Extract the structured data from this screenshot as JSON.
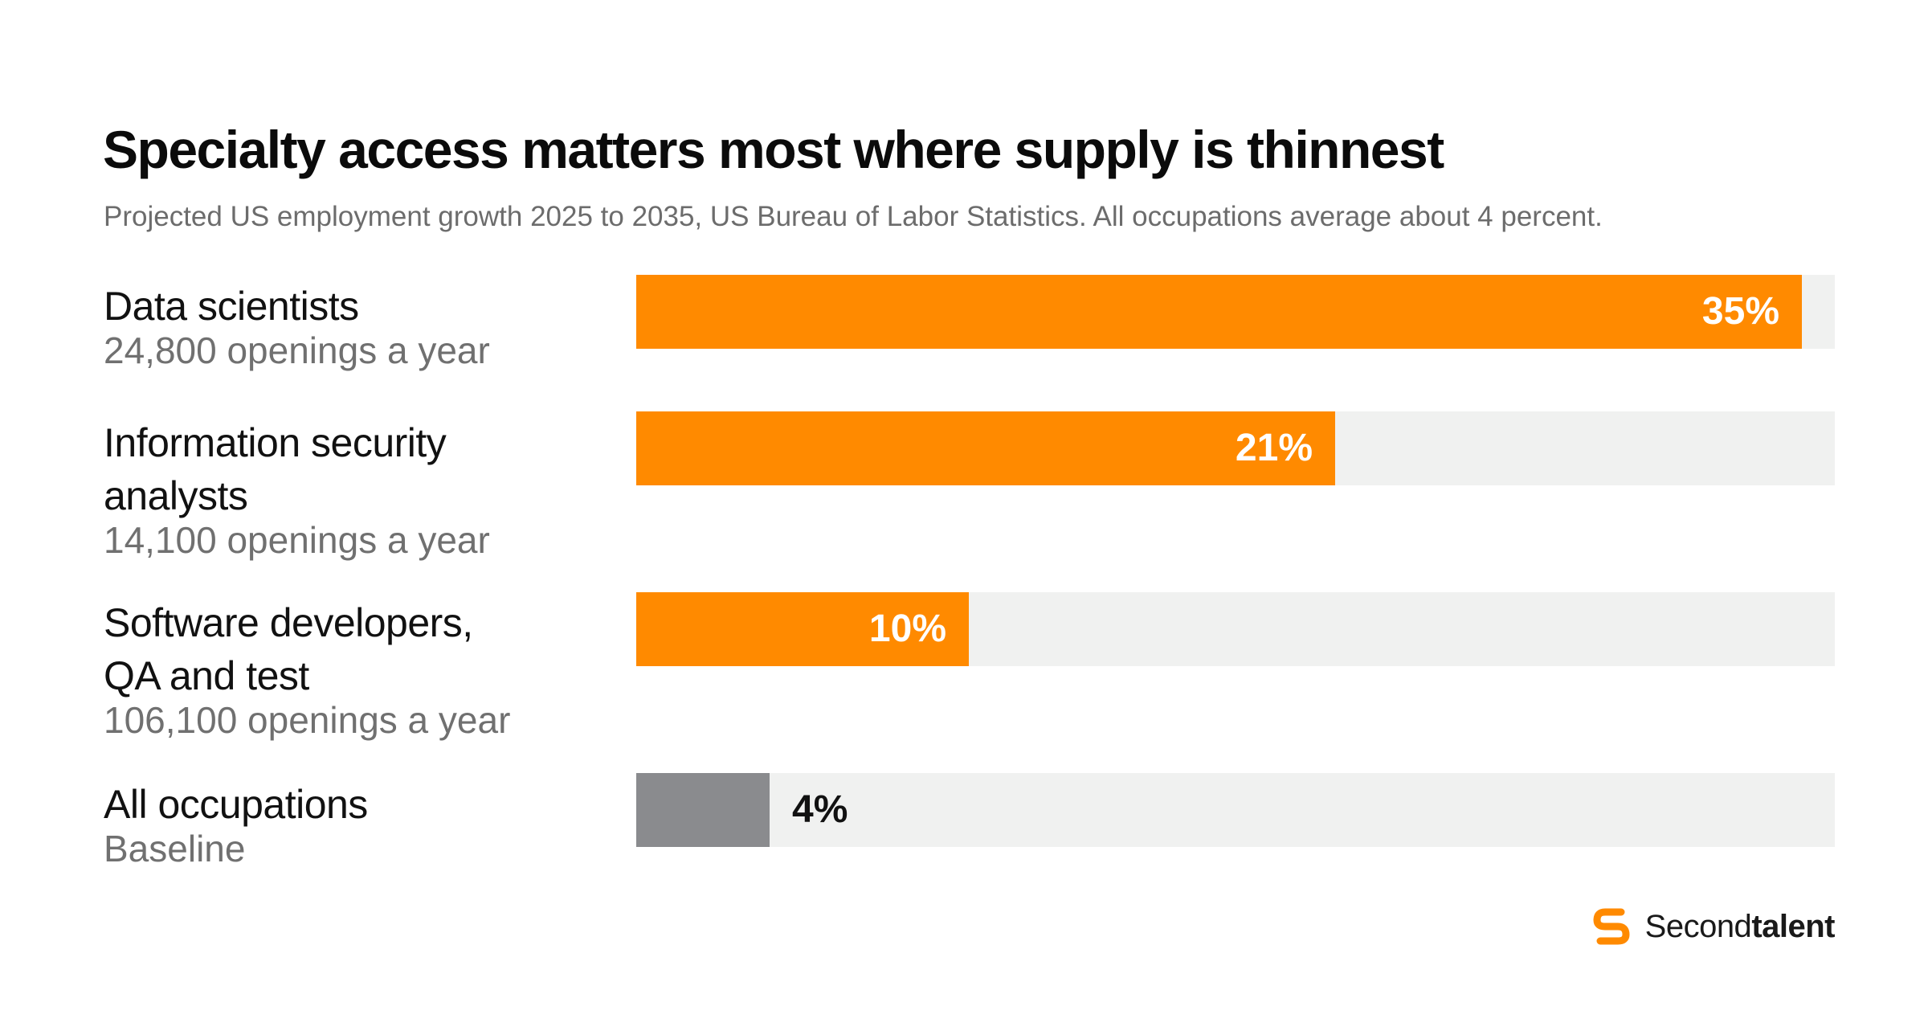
{
  "title": "Specialty access matters most where supply is thinnest",
  "subtitle": "Projected US employment growth 2025 to 2035, US Bureau of Labor Statistics. All occupations average about 4 percent.",
  "colors": {
    "highlight": "#ff8a00",
    "baseline": "#8a8b8e",
    "track": "#f0f1f0"
  },
  "logo": {
    "icon": "secondtalent-s-icon",
    "text_regular": "Second",
    "text_bold": "talent"
  },
  "chart_data": {
    "type": "bar",
    "orientation": "horizontal",
    "title": "Specialty access matters most where supply is thinnest",
    "xlim": [
      0,
      36
    ],
    "grid": false,
    "categories": [
      "Data scientists",
      "Information security analysts",
      "Software developers, QA and test",
      "All occupations"
    ],
    "values": [
      35,
      21,
      10,
      4
    ],
    "value_labels": [
      "35%",
      "21%",
      "10%",
      "4%"
    ],
    "sublabels": [
      "24,800 openings a year",
      "14,100 openings a year",
      "106,100 openings a year",
      "Baseline"
    ],
    "name_lines": [
      [
        "Data scientists"
      ],
      [
        "Information security",
        "analysts"
      ],
      [
        "Software developers,",
        "QA and test"
      ],
      [
        "All occupations"
      ]
    ]
  }
}
